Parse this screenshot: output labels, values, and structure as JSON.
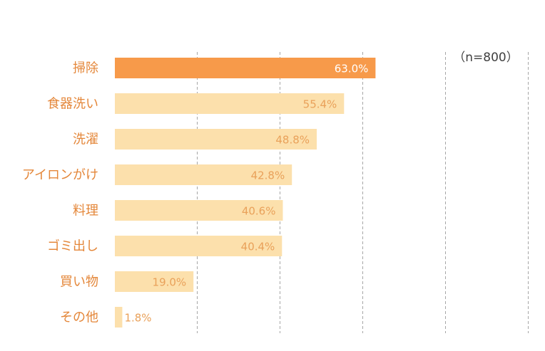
{
  "chart_data": {
    "type": "bar",
    "orientation": "horizontal",
    "annotation": "（n=800）",
    "categories": [
      "掃除",
      "食器洗い",
      "洗濯",
      "アイロンがけ",
      "料理",
      "ゴミ出し",
      "買い物",
      "その他"
    ],
    "values": [
      63.0,
      55.4,
      48.8,
      42.8,
      40.6,
      40.4,
      19.0,
      1.8
    ],
    "value_labels": [
      "63.0%",
      "55.4%",
      "48.8%",
      "42.8%",
      "40.6%",
      "40.4%",
      "19.0%",
      "1.8%"
    ],
    "xlim": [
      0,
      100
    ],
    "grid": true,
    "grid_style": "dashed vertical",
    "highlight_index": 0,
    "colors": {
      "highlight_bar": "#F79A4A",
      "bar": "#FCE0AC",
      "category_text": "#E4873A",
      "value_text_on_highlight": "#FFFFFF",
      "value_text": "#E9A15A",
      "annotation_text": "#404040",
      "grid": "#A6A6A6"
    }
  }
}
